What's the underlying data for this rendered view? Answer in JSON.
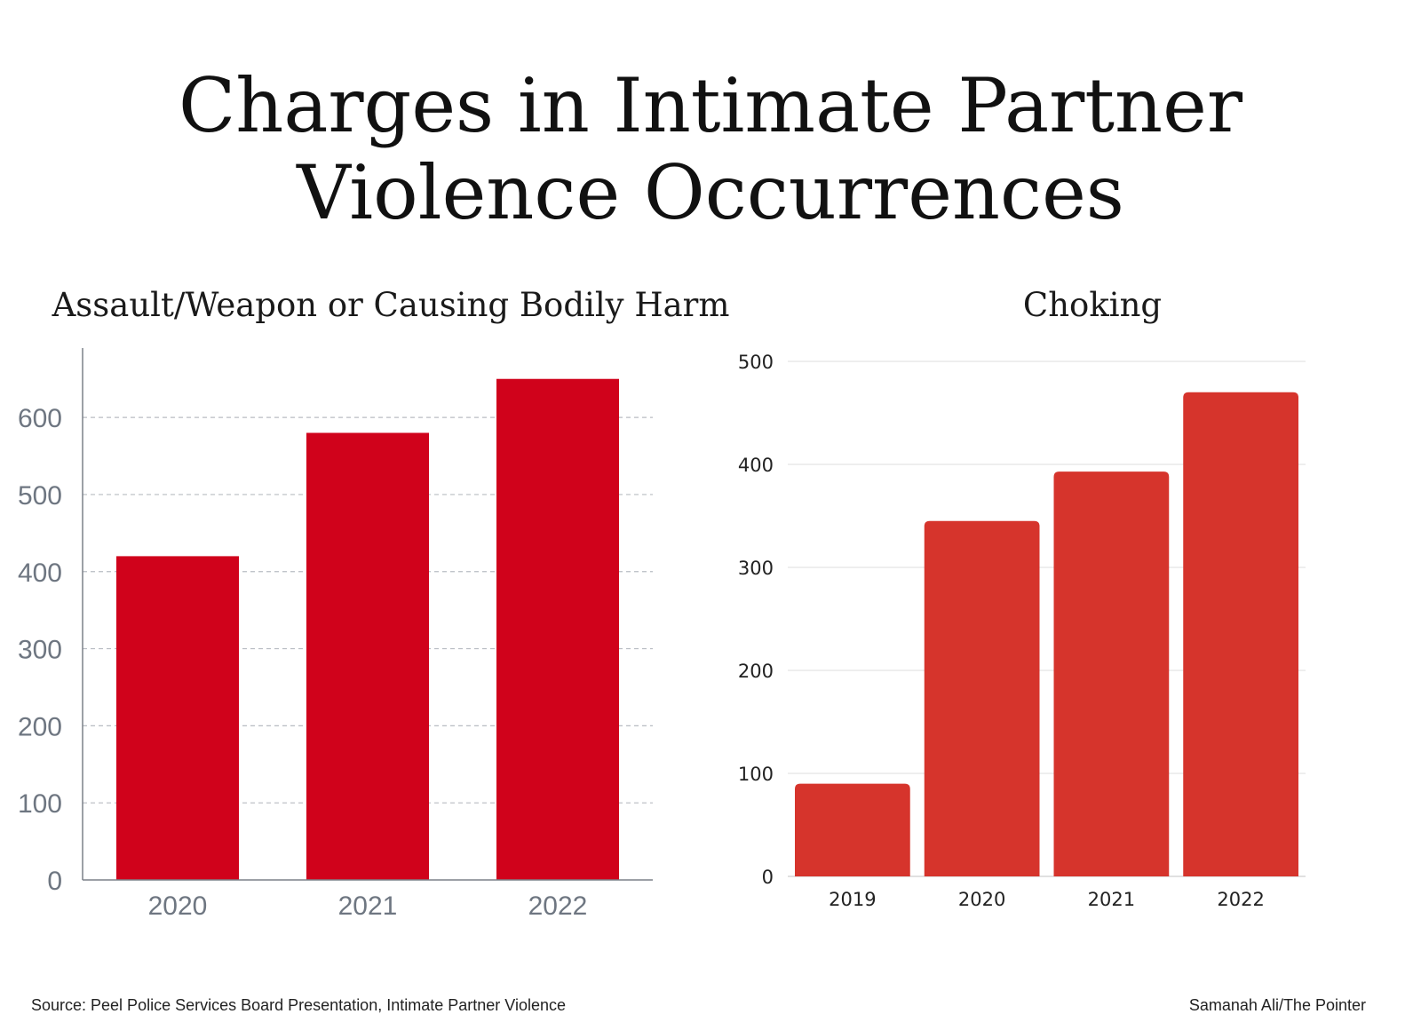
{
  "title": {
    "line1": "Charges in Intimate Partner",
    "line2": "Violence Occurrences"
  },
  "footer": {
    "source": "Source: Peel Police Services Board Presentation, Intimate Partner Violence",
    "credit": "Samanah Ali/The Pointer"
  },
  "colors": {
    "left_bar": "#d0021b",
    "right_bar": "#d6342c",
    "left_tick": "#6e7681",
    "right_tick": "#222222"
  },
  "chart_data": [
    {
      "type": "bar",
      "title": "Assault/Weapon or Causing Bodily Harm",
      "categories": [
        "2020",
        "2021",
        "2022"
      ],
      "values": [
        420,
        580,
        650
      ],
      "yticks": [
        0,
        100,
        200,
        300,
        400,
        500,
        600
      ],
      "ylim": [
        0,
        690
      ],
      "xlabel": "",
      "ylabel": "",
      "grid": "dashed"
    },
    {
      "type": "bar",
      "title": "Choking",
      "categories": [
        "2019",
        "2020",
        "2021",
        "2022"
      ],
      "values": [
        90,
        345,
        393,
        470
      ],
      "yticks": [
        0,
        100,
        200,
        300,
        400,
        500
      ],
      "ylim": [
        0,
        500
      ],
      "xlabel": "",
      "ylabel": "",
      "grid": "solid"
    }
  ]
}
